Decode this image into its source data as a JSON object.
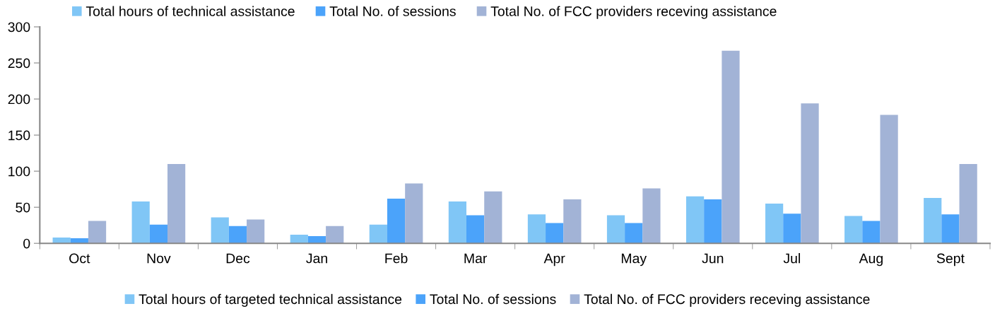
{
  "chart_data": {
    "type": "bar",
    "categories": [
      "Oct",
      "Nov",
      "Dec",
      "Jan",
      "Feb",
      "Mar",
      "Apr",
      "May",
      "Jun",
      "Jul",
      "Aug",
      "Sept"
    ],
    "series": [
      {
        "name": "Total hours of targeted technical assistance",
        "color": "#80c6f6",
        "values": [
          8,
          58,
          36,
          12,
          26,
          58,
          40,
          39,
          65,
          55,
          38,
          63
        ]
      },
      {
        "name": "Total No. of sessions",
        "color": "#4ba3fa",
        "values": [
          7,
          26,
          24,
          10,
          62,
          39,
          28,
          28,
          61,
          41,
          31,
          40
        ]
      },
      {
        "name": "Total No. of FCC providers receving assistance",
        "color": "#a2b3d6",
        "values": [
          31,
          110,
          33,
          24,
          83,
          72,
          61,
          76,
          267,
          194,
          178,
          110
        ]
      }
    ],
    "annotations": [
      "Total hours of technical assistance",
      "Total No. of sessions",
      "Total No. of FCC providers receving assistance"
    ],
    "ylim": [
      0,
      300
    ],
    "yticks": [
      0,
      50,
      100,
      150,
      200,
      250,
      300
    ],
    "grid": false,
    "legend": "bottom"
  }
}
